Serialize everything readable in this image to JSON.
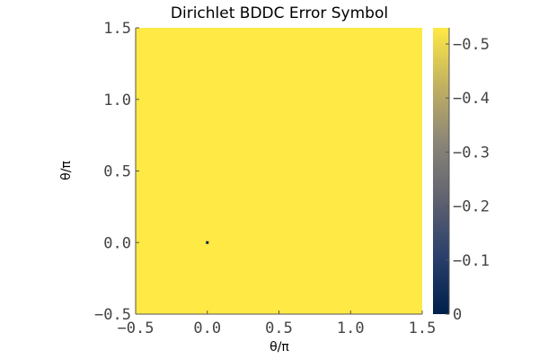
{
  "chart_data": {
    "type": "heatmap",
    "title": "Dirichlet BDDC Error Symbol",
    "xlabel": "θ/π",
    "ylabel": "θ/π",
    "xlim": [
      -0.5,
      1.5
    ],
    "ylim": [
      -0.5,
      1.5
    ],
    "x_ticks": [
      "−0.5",
      "0.0",
      "0.5",
      "1.0",
      "1.5"
    ],
    "y_ticks": [
      "−0.5",
      "0.0",
      "0.5",
      "1.0",
      "1.5"
    ],
    "colormap": "cividis",
    "colorbar": {
      "range": [
        0,
        0.53
      ],
      "ticks": [
        0,
        0.1,
        0.2,
        0.3,
        0.4,
        0.5
      ],
      "tick_labels": [
        "0",
        "0.1",
        "0.2",
        "0.3",
        "0.4",
        "0.5"
      ]
    },
    "field": {
      "dominant_value": 0.53,
      "minimum_value": 0.0,
      "minimum_at": [
        0.0,
        0.0
      ]
    },
    "grid": false
  },
  "colors": {
    "high": "#ffe945",
    "low": "#00204c"
  }
}
